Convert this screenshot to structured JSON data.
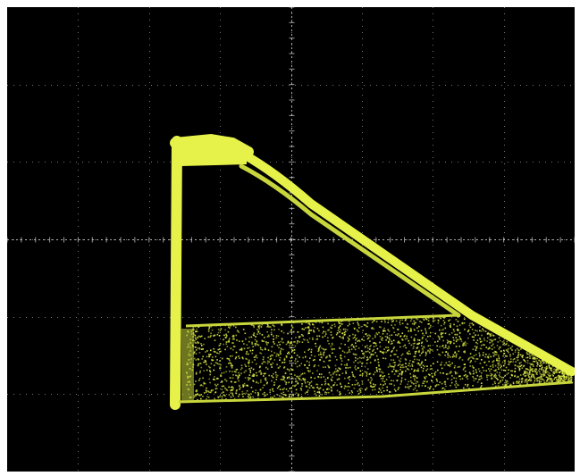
{
  "scope": {
    "background_color": "#000000",
    "frame_color": "#ffffff",
    "graticule_color": "#d8d8d8",
    "trace_color": "#e6f24a",
    "trace_dim_color": "#c8d63c",
    "grid": true,
    "divisions_x": 8,
    "divisions_y": 6,
    "display_mode": "XY"
  }
}
